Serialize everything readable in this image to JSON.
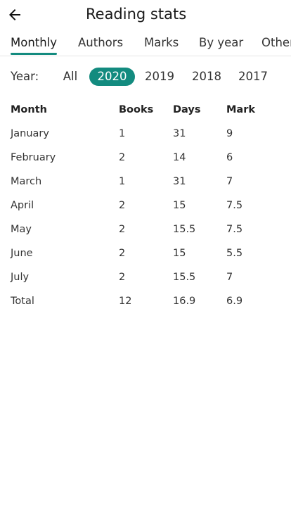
{
  "header": {
    "title": "Reading stats"
  },
  "tabs": [
    {
      "label": "Monthly"
    },
    {
      "label": "Authors"
    },
    {
      "label": "Marks"
    },
    {
      "label": "By year"
    },
    {
      "label": "Other"
    }
  ],
  "years": {
    "label": "Year:",
    "options": [
      "All",
      "2020",
      "2019",
      "2018",
      "2017"
    ],
    "selected": "2020"
  },
  "table": {
    "columns": [
      "Month",
      "Books",
      "Days",
      "Mark"
    ],
    "rows": [
      [
        "January",
        "1",
        "31",
        "9"
      ],
      [
        "February",
        "2",
        "14",
        "6"
      ],
      [
        "March",
        "1",
        "31",
        "7"
      ],
      [
        "April",
        "2",
        "15",
        "7.5"
      ],
      [
        "May",
        "2",
        "15.5",
        "7.5"
      ],
      [
        "June",
        "2",
        "15",
        "5.5"
      ],
      [
        "July",
        "2",
        "15.5",
        "7"
      ],
      [
        "Total",
        "12",
        "16.9",
        "6.9"
      ]
    ]
  },
  "colors": {
    "accent": "#138b7f"
  },
  "icons": {
    "back": "arrow-left-icon"
  }
}
